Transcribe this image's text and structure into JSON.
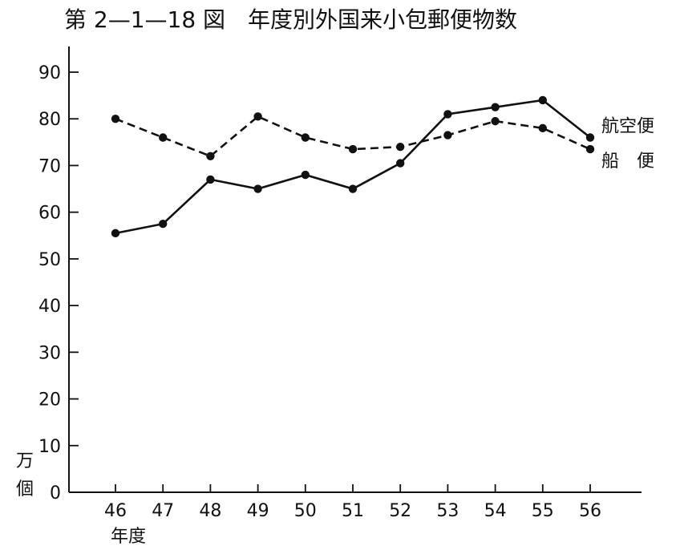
{
  "chart_data": {
    "type": "line",
    "title": "第 2—1—18 図　年度別外国来小包郵便物数",
    "xlabel": "年度",
    "ylabel": "万個",
    "categories": [
      "46",
      "47",
      "48",
      "49",
      "50",
      "51",
      "52",
      "53",
      "54",
      "55",
      "56"
    ],
    "ylim": [
      0,
      90
    ],
    "yticks": [
      0,
      10,
      20,
      30,
      40,
      50,
      60,
      70,
      80,
      90
    ],
    "grid": false,
    "legend_placement": "right",
    "series": [
      {
        "name": "航空便",
        "style": "solid",
        "values": [
          55.5,
          57.5,
          67,
          65,
          68,
          65,
          70.5,
          81,
          82.5,
          84,
          76
        ]
      },
      {
        "name": "船　便",
        "style": "dashed",
        "values": [
          80,
          76,
          72,
          80.5,
          76,
          73.5,
          74,
          76.5,
          79.5,
          78,
          73.5
        ]
      }
    ]
  },
  "labels": {
    "title": "第 2—1—18 図　年度別外国来小包郵便物数",
    "ylabel_line1": "万",
    "ylabel_line2": "個",
    "xlabel": "年度"
  },
  "colors": {
    "ink": "#111111",
    "background": "#ffffff"
  }
}
